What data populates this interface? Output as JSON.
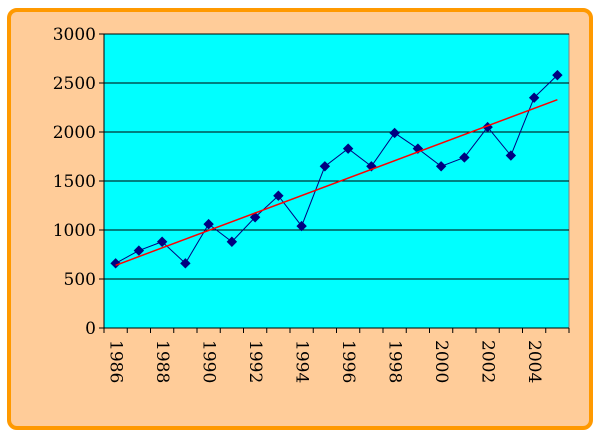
{
  "chart_data": {
    "type": "line",
    "title": "",
    "xlabel": "",
    "ylabel": "",
    "x": [
      1986,
      1987,
      1988,
      1989,
      1990,
      1991,
      1992,
      1993,
      1994,
      1995,
      1996,
      1997,
      1998,
      1999,
      2000,
      2001,
      2002,
      2003,
      2004,
      2005
    ],
    "xtick_labels": [
      "1986",
      "1988",
      "1990",
      "1992",
      "1994",
      "1996",
      "1998",
      "2000",
      "2002",
      "2004"
    ],
    "ylim": [
      0,
      3000
    ],
    "yticks": [
      0,
      500,
      1000,
      1500,
      2000,
      2500,
      3000
    ],
    "grid": true,
    "legend": "none",
    "series": [
      {
        "values": [
          660,
          790,
          880,
          660,
          1060,
          880,
          1130,
          1350,
          1040,
          1650,
          1830,
          1650,
          1990,
          1830,
          1650,
          1740,
          2050,
          1760,
          2350,
          2580
        ],
        "color": "#000080",
        "marker": "diamond"
      },
      {
        "kind": "trend",
        "x": [
          1986,
          2005
        ],
        "values": [
          640,
          2330
        ],
        "color": "#ff0000"
      }
    ],
    "colors": {
      "plot_background": "#00ffff",
      "frame_background": "#ffcc99",
      "frame_border": "#ff9900",
      "gridline": "#000000"
    }
  }
}
